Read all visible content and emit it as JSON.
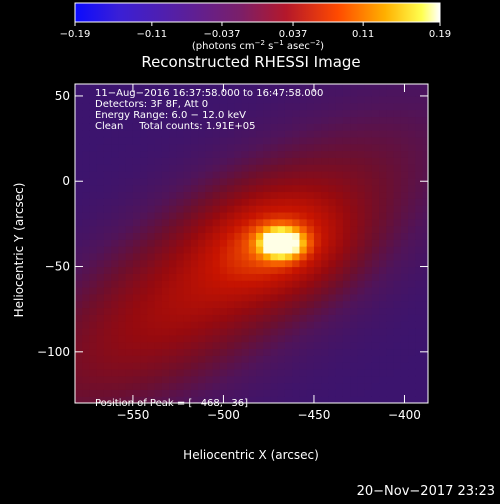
{
  "chart_data": {
    "type": "heatmap",
    "title": "Reconstructed RHESSI Image",
    "xlabel": "Heliocentric X (arcsec)",
    "ylabel": "Heliocentric Y (arcsec)",
    "xlim": [
      -582,
      -387
    ],
    "ylim": [
      -130,
      57
    ],
    "x_ticks": [
      -550,
      -500,
      -450,
      -400
    ],
    "y_ticks": [
      50,
      0,
      -50,
      -100
    ],
    "x_tick_labels": [
      "−550",
      "−500",
      "−450",
      "−400"
    ],
    "y_tick_labels": [
      "50",
      "0",
      "−50",
      "−100"
    ],
    "colorbar": {
      "range": [
        -0.19,
        0.19
      ],
      "ticks": [
        -0.19,
        -0.11,
        -0.037,
        0.037,
        0.11,
        0.19
      ],
      "tick_labels": [
        "−0.19",
        "−0.11",
        "−0.037",
        "0.037",
        "0.11",
        "0.19"
      ],
      "unit_prefix": "(photons cm",
      "unit_exp1": "−2",
      "unit_mid": " s",
      "unit_exp2": "−1",
      "unit_mid2": " asec",
      "unit_exp3": "−2",
      "unit_suffix": ")"
    },
    "annotations": [
      "11−Aug−2016 16:37:58.000 to 16:47:58.000",
      "Detectors: 3F 8F, Att 0",
      "Energy Range: 6.0 − 12.0 keV",
      "Clean     Total counts: 1.91E+05"
    ],
    "peak_label": "Position of Peak = [−468,−36]",
    "peak": [
      -468,
      -36
    ],
    "source_core_peak_value": 0.19,
    "grid": false,
    "legend": "none",
    "colormap": "IDL rainbow-heat (blue-purple-red-orange-yellow-white)"
  },
  "footer": {
    "date_stamp": "20−Nov−2017 23:23"
  }
}
